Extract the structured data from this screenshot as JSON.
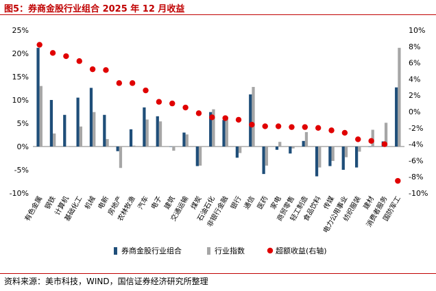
{
  "figure": {
    "title": "图5：券商金股行业组合 2025 年 12 月收益",
    "source": "资料来源：美市科技，WIND，国信证券经济研究所整理"
  },
  "chart_data": {
    "type": "bar",
    "categories": [
      "有色金属",
      "钢铁",
      "计算机",
      "基础化工",
      "机械",
      "电新",
      "房地产",
      "农林牧渔",
      "汽车",
      "电子",
      "建筑",
      "交通运输",
      "煤炭",
      "石油石化",
      "非银行金融",
      "银行",
      "通信",
      "医药",
      "家电",
      "商贸零售",
      "轻工制造",
      "食品饮料",
      "传媒",
      "电力公用事业",
      "纺织服装",
      "建材",
      "消费者服务",
      "国防军工"
    ],
    "series": [
      {
        "name": "券商金股行业组合",
        "type": "bar",
        "axis": "left",
        "color": "#1f4e79",
        "values": [
          21.2,
          10.0,
          6.8,
          10.5,
          12.6,
          6.8,
          -1.0,
          3.7,
          8.4,
          6.5,
          0.0,
          3.0,
          -4.2,
          7.4,
          5.7,
          -2.4,
          11.2,
          -5.9,
          -0.7,
          -1.5,
          1.2,
          -6.4,
          -4.2,
          -5.0,
          -4.5,
          0.0,
          1.1,
          12.7
        ]
      },
      {
        "name": "行业指数",
        "type": "bar",
        "axis": "left",
        "color": "#a6a6a6",
        "values": [
          13.0,
          2.8,
          0.0,
          4.3,
          7.4,
          1.6,
          -4.6,
          0.2,
          5.8,
          5.4,
          -0.9,
          2.6,
          -4.1,
          8.0,
          6.4,
          -1.4,
          12.8,
          -4.1,
          1.0,
          -0.4,
          3.1,
          -4.5,
          -3.1,
          -2.3,
          -1.1,
          3.6,
          5.1,
          21.2
        ]
      },
      {
        "name": "超额收益(右轴)",
        "type": "scatter",
        "axis": "right",
        "color": "#e00000",
        "values": [
          8.2,
          7.2,
          6.8,
          6.2,
          5.2,
          5.1,
          3.5,
          3.5,
          2.6,
          1.2,
          1.0,
          0.5,
          -0.2,
          -0.7,
          -0.8,
          -1.0,
          -1.6,
          -1.8,
          -1.8,
          -1.9,
          -1.9,
          -2.0,
          -2.3,
          -2.6,
          -3.4,
          -3.6,
          -4.0,
          -8.5
        ]
      }
    ],
    "y_left": {
      "min": -10,
      "max": 25,
      "step": 5,
      "tick_labels": [
        "-10%",
        "-5%",
        "0%",
        "5%",
        "10%",
        "15%",
        "20%",
        "25%"
      ]
    },
    "y_right": {
      "min": -10,
      "max": 10,
      "step": 2,
      "tick_labels": [
        "-10%",
        "-8%",
        "-6%",
        "-4%",
        "-2%",
        "0%",
        "2%",
        "4%",
        "6%",
        "8%",
        "10%"
      ]
    },
    "legend_position": "bottom",
    "grid": false
  }
}
